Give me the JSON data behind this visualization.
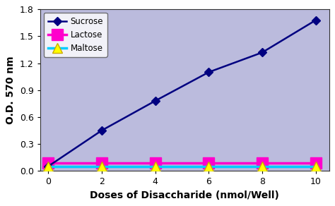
{
  "x": [
    0,
    2,
    4,
    6,
    8,
    10
  ],
  "sucrose_y": [
    0.05,
    0.45,
    0.78,
    1.1,
    1.32,
    1.68
  ],
  "lactose_y": [
    0.09,
    0.09,
    0.09,
    0.09,
    0.09,
    0.09
  ],
  "maltose_y": [
    0.05,
    0.05,
    0.05,
    0.05,
    0.05,
    0.05
  ],
  "sucrose_color": "#000080",
  "lactose_color": "#FF00CC",
  "maltose_color": "#00CCFF",
  "maltose_marker_color": "#FFFF00",
  "lactose_marker_color": "#FF00CC",
  "plot_bg_color": "#BBBBDD",
  "outer_bg_color": "#FFFFFF",
  "xlabel": "Doses of Disaccharide (nmol/Well)",
  "ylabel": "O.D. 570 nm",
  "xlim": [
    -0.3,
    10.5
  ],
  "ylim": [
    0,
    1.8
  ],
  "yticks": [
    0,
    0.3,
    0.6,
    0.9,
    1.2,
    1.5,
    1.8
  ],
  "xticks": [
    0,
    2,
    4,
    6,
    8,
    10
  ],
  "legend_labels": [
    "Sucrose",
    "Lactose",
    "Maltose"
  ],
  "xlabel_fontsize": 10,
  "ylabel_fontsize": 10,
  "tick_fontsize": 9
}
